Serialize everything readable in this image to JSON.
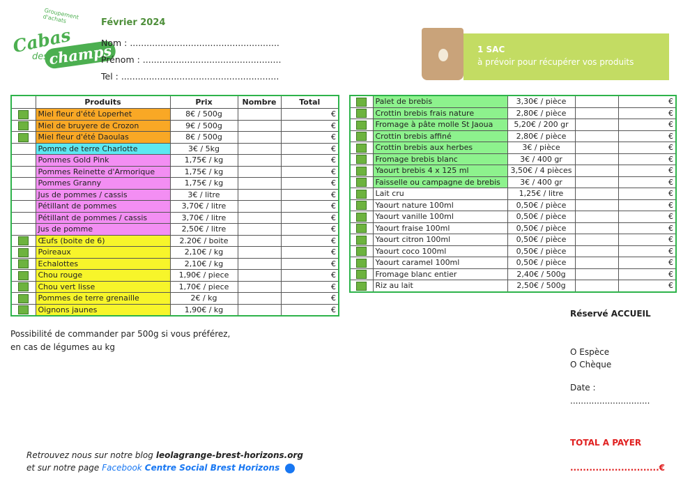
{
  "logo": {
    "tagline": "Groupement d'achats",
    "word1": "Cabas",
    "word2": "des",
    "word3": "champs"
  },
  "header": {
    "month": "Février 2024",
    "fields": [
      "Nom : ......................................................",
      "Prénom : ..................................................",
      "Tel : ........................................................."
    ]
  },
  "banner": {
    "title": "1 SAC",
    "text": "à prévoir pour récupérer vos produits"
  },
  "left_table": {
    "columns": [
      "Produits",
      "Prix",
      "Nombre",
      "Total"
    ],
    "rows": [
      {
        "product": "Miel fleur d'été Loperhet",
        "price": "8€ / 500g",
        "total": "€",
        "bio": true,
        "color": "#f9a825"
      },
      {
        "product": "Miel de bruyere de Crozon",
        "price": "9€ / 500g",
        "total": "€",
        "bio": true,
        "color": "#f9a825"
      },
      {
        "product": "Miel fleur d'été Daoulas",
        "price": "8€ / 500g",
        "total": "€",
        "bio": true,
        "color": "#f9a825"
      },
      {
        "product": "Pomme de terre Charlotte",
        "price": "3€ / 5kg",
        "total": "€",
        "bio": false,
        "color": "#5ce8f2"
      },
      {
        "product": "Pommes Gold Pink",
        "price": "1,75€ / kg",
        "total": "€",
        "bio": false,
        "color": "#f38ef3"
      },
      {
        "product": "Pommes Reinette d'Armorique",
        "price": "1,75€ / kg",
        "total": "€",
        "bio": false,
        "color": "#f38ef3"
      },
      {
        "product": "Pommes Granny",
        "price": "1,75€ / kg",
        "total": "€",
        "bio": false,
        "color": "#f38ef3"
      },
      {
        "product": "Jus de pommes / cassis",
        "price": "3€ / litre",
        "total": "€",
        "bio": false,
        "color": "#f38ef3"
      },
      {
        "product": "Pétillant de pommes",
        "price": "3,70€ / litre",
        "total": "€",
        "bio": false,
        "color": "#f38ef3"
      },
      {
        "product": "Pétillant de pommes / cassis",
        "price": "3,70€ / litre",
        "total": "€",
        "bio": false,
        "color": "#f38ef3"
      },
      {
        "product": "Jus de pomme",
        "price": "2,50€ / litre",
        "total": "€",
        "bio": false,
        "color": "#f38ef3"
      },
      {
        "product": "Œufs (boite de 6)",
        "price": "2.20€ / boite",
        "total": "€",
        "bio": true,
        "color": "#f7f52a"
      },
      {
        "product": "Poireaux",
        "price": "2,10€ / kg",
        "total": "€",
        "bio": true,
        "color": "#f7f52a"
      },
      {
        "product": "Echalottes",
        "price": "2,10€ / kg",
        "total": "€",
        "bio": true,
        "color": "#f7f52a"
      },
      {
        "product": "Chou rouge",
        "price": "1,90€ / piece",
        "total": "€",
        "bio": true,
        "color": "#f7f52a"
      },
      {
        "product": "Chou vert lisse",
        "price": "1,70€ / piece",
        "total": "€",
        "bio": true,
        "color": "#f7f52a"
      },
      {
        "product": "Pommes de terre grenaille",
        "price": "2€ / kg",
        "total": "€",
        "bio": true,
        "color": "#f7f52a"
      },
      {
        "product": "Oignons jaunes",
        "price": "1,90€ / kg",
        "total": "€",
        "bio": true,
        "color": "#f7f52a"
      }
    ]
  },
  "right_table": {
    "rows": [
      {
        "product": "Palet de brebis",
        "price": "3,30€ / pièce",
        "total": "€",
        "bio": true,
        "color": "#8df28d"
      },
      {
        "product": "Crottin brebis frais nature",
        "price": "2,80€ / pièce",
        "total": "€",
        "bio": true,
        "color": "#8df28d"
      },
      {
        "product": "Fromage à pâte molle St Jaoua",
        "price": "5,20€ / 200 gr",
        "total": "€",
        "bio": true,
        "color": "#8df28d"
      },
      {
        "product": "Crottin brebis affiné",
        "price": "2,80€ / pièce",
        "total": "€",
        "bio": true,
        "color": "#8df28d"
      },
      {
        "product": "Crottin brebis aux herbes",
        "price": "3€ / pièce",
        "total": "€",
        "bio": true,
        "color": "#8df28d"
      },
      {
        "product": "Fromage brebis blanc",
        "price": "3€ / 400 gr",
        "total": "€",
        "bio": true,
        "color": "#8df28d"
      },
      {
        "product": "Yaourt brebis 4 x 125 ml",
        "price": "3,50€ / 4 pièces",
        "total": "€",
        "bio": true,
        "color": "#8df28d"
      },
      {
        "product": "Faisselle ou campagne de brebis",
        "price": "3€ / 400 gr",
        "total": "€",
        "bio": true,
        "color": "#8df28d"
      },
      {
        "product": "Lait cru",
        "price": "1,25€ / litre",
        "total": "€",
        "bio": true,
        "color": "#ffffff"
      },
      {
        "product": "Yaourt nature 100ml",
        "price": "0,50€ / pièce",
        "total": "€",
        "bio": true,
        "color": "#ffffff"
      },
      {
        "product": "Yaourt vanille 100ml",
        "price": "0,50€ / pièce",
        "total": "€",
        "bio": true,
        "color": "#ffffff"
      },
      {
        "product": "Yaourt fraise 100ml",
        "price": "0,50€ / pièce",
        "total": "€",
        "bio": true,
        "color": "#ffffff"
      },
      {
        "product": "Yaourt citron 100ml",
        "price": "0,50€ / pièce",
        "total": "€",
        "bio": true,
        "color": "#ffffff"
      },
      {
        "product": "Yaourt coco 100ml",
        "price": "0,50€ / pièce",
        "total": "€",
        "bio": true,
        "color": "#ffffff"
      },
      {
        "product": "Yaourt caramel 100ml",
        "price": "0,50€ / pièce",
        "total": "€",
        "bio": true,
        "color": "#ffffff"
      },
      {
        "product": "Fromage blanc entier",
        "price": "2,40€ / 500g",
        "total": "€",
        "bio": true,
        "color": "#ffffff"
      },
      {
        "product": "Riz au lait",
        "price": "2,50€ / 500g",
        "total": "€",
        "bio": true,
        "color": "#ffffff"
      }
    ]
  },
  "note": [
    "Possibilité de commander par 500g si vous préférez,",
    "en cas de légumes au kg"
  ],
  "reception": {
    "title": "Réservé ACCUEIL",
    "options": [
      "O Espèce",
      "O Chèque"
    ],
    "date_label": "Date :",
    "date_line": "..............................",
    "total_label": "TOTAL A PAYER",
    "total_line": "............................€"
  },
  "footer": {
    "line1_text": "Retrouvez nous sur notre blog",
    "blog": "leolagrange-brest-horizons.org",
    "line2_text": "et sur notre page",
    "facebook": "Facebook",
    "page_name": "Centre Social Brest Horizons"
  }
}
